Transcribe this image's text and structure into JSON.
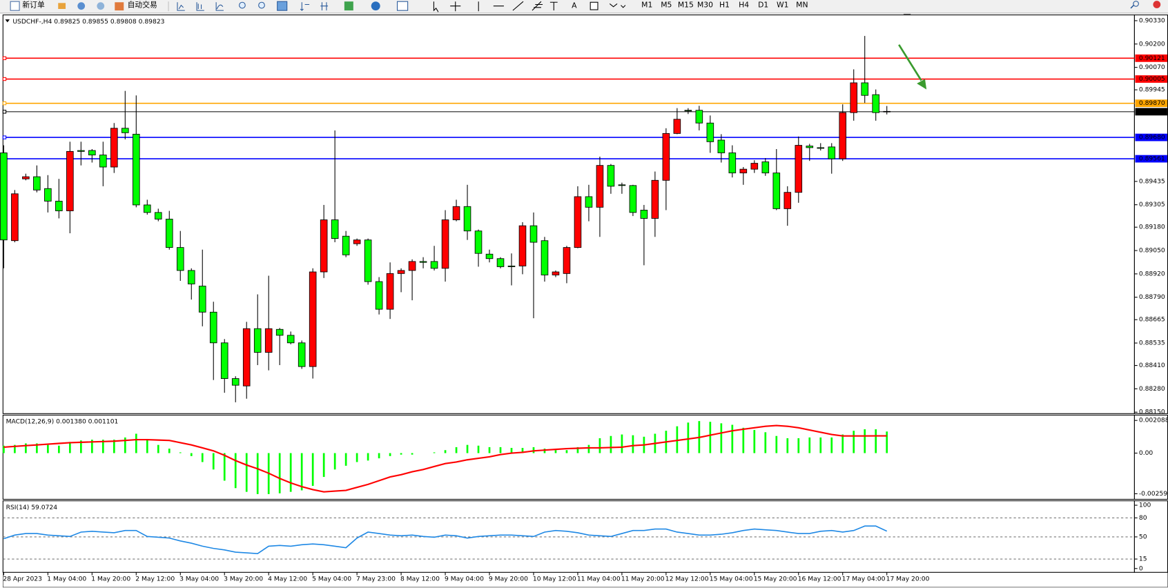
{
  "toolbar": {
    "new_order": "新订单",
    "auto_trading": "自动交易",
    "timeframes": [
      "M1",
      "M5",
      "M15",
      "M30",
      "H1",
      "H4",
      "D1",
      "W1",
      "MN"
    ]
  },
  "chart_data": [
    {
      "type": "candlestick",
      "title": "USDCHF-,H4  0.89825 0.89855 0.89808 0.89823",
      "up_color": "#ff0000",
      "down_color": "#00ff00",
      "categories": [
        "28 Apr 2023",
        null,
        null,
        null,
        "1 May 04:00",
        null,
        null,
        null,
        "1 May 20:00",
        null,
        null,
        null,
        "2 May 12:00",
        null,
        null,
        null,
        "3 May 04:00",
        null,
        null,
        null,
        "3 May 20:00",
        null,
        null,
        null,
        "4 May 12:00",
        null,
        null,
        null,
        "5 May 04:00",
        null,
        null,
        null,
        "7 May 23:00",
        null,
        null,
        null,
        "8 May 12:00",
        null,
        null,
        null,
        "9 May 04:00",
        null,
        null,
        null,
        "9 May 20:00",
        null,
        null,
        null,
        "10 May 12:00",
        null,
        null,
        null,
        "11 May 04:00",
        null,
        null,
        null,
        "11 May 20:00",
        null,
        null,
        null,
        "12 May 12:00",
        null,
        null,
        null,
        "15 May 04:00",
        null,
        null,
        null,
        "15 May 20:00",
        null,
        null,
        null,
        "16 May 12:00",
        null,
        null,
        null,
        "17 May 04:00",
        null,
        null,
        null,
        "17 May 20:00"
      ],
      "ohlc": [
        [
          0.89594,
          0.89636,
          0.88951,
          0.89109
        ],
        [
          0.89105,
          0.89387,
          0.89096,
          0.89366
        ],
        [
          0.89449,
          0.89478,
          0.89441,
          0.89461
        ],
        [
          0.89461,
          0.89524,
          0.89374,
          0.89387
        ],
        [
          0.89395,
          0.8947,
          0.89262,
          0.89325
        ],
        [
          0.89325,
          0.89449,
          0.89229,
          0.89271
        ],
        [
          0.89271,
          0.89656,
          0.89146,
          0.89602
        ],
        [
          0.89607,
          0.89656,
          0.89524,
          0.89602
        ],
        [
          0.89607,
          0.89615,
          0.8954,
          0.89582
        ],
        [
          0.89582,
          0.89656,
          0.89408,
          0.89515
        ],
        [
          0.89515,
          0.8976,
          0.89482,
          0.89731
        ],
        [
          0.89731,
          0.89939,
          0.89669,
          0.89706
        ],
        [
          0.89698,
          0.89914,
          0.89291,
          0.89304
        ],
        [
          0.89304,
          0.89333,
          0.8925,
          0.89262
        ],
        [
          0.89262,
          0.89283,
          0.89213,
          0.89225
        ],
        [
          0.89225,
          0.89271,
          0.89055,
          0.89067
        ],
        [
          0.89067,
          0.89159,
          0.88881,
          0.88939
        ],
        [
          0.88939,
          0.88951,
          0.88777,
          0.88864
        ],
        [
          0.88852,
          0.89055,
          0.88628,
          0.88707
        ],
        [
          0.88707,
          0.88765,
          0.88329,
          0.88536
        ],
        [
          0.88536,
          0.88557,
          0.88258,
          0.88337
        ],
        [
          0.88337,
          0.8835,
          0.88205,
          0.883
        ],
        [
          0.88296,
          0.88653,
          0.88225,
          0.88615
        ],
        [
          0.88615,
          0.88806,
          0.88412,
          0.88483
        ],
        [
          0.88483,
          0.8891,
          0.88383,
          0.88615
        ],
        [
          0.88611,
          0.88619,
          0.88412,
          0.88578
        ],
        [
          0.88578,
          0.88599,
          0.88528,
          0.88536
        ],
        [
          0.88536,
          0.88549,
          0.88391,
          0.88404
        ],
        [
          0.88404,
          0.88951,
          0.88337,
          0.88931
        ],
        [
          0.88931,
          0.89304,
          0.88897,
          0.89221
        ],
        [
          0.89221,
          0.89719,
          0.89096,
          0.89117
        ],
        [
          0.8913,
          0.89159,
          0.89013,
          0.89026
        ],
        [
          0.89088,
          0.89117,
          0.89076,
          0.89109
        ],
        [
          0.89109,
          0.89117,
          0.8886,
          0.88877
        ],
        [
          0.88877,
          0.88902,
          0.88694,
          0.88723
        ],
        [
          0.88723,
          0.88984,
          0.88669,
          0.88922
        ],
        [
          0.88922,
          0.88951,
          0.88818,
          0.88939
        ],
        [
          0.88939,
          0.89001,
          0.88773,
          0.88989
        ],
        [
          0.88989,
          0.89013,
          0.88951,
          0.88984
        ],
        [
          0.88989,
          0.89076,
          0.88939,
          0.88951
        ],
        [
          0.88951,
          0.89275,
          0.88877,
          0.89221
        ],
        [
          0.89221,
          0.89333,
          0.89213,
          0.89295
        ],
        [
          0.89295,
          0.89416,
          0.89109,
          0.89159
        ],
        [
          0.89159,
          0.89167,
          0.8896,
          0.89034
        ],
        [
          0.8903,
          0.89055,
          0.88984,
          0.89005
        ],
        [
          0.89005,
          0.89013,
          0.88951,
          0.8896
        ],
        [
          0.88964,
          0.89034,
          0.88856,
          0.8896
        ],
        [
          0.88964,
          0.89208,
          0.88918,
          0.89188
        ],
        [
          0.89188,
          0.89262,
          0.88673,
          0.89096
        ],
        [
          0.89105,
          0.89126,
          0.88877,
          0.88914
        ],
        [
          0.88914,
          0.88939,
          0.88902,
          0.88931
        ],
        [
          0.88922,
          0.89076,
          0.88868,
          0.89067
        ],
        [
          0.89067,
          0.89408,
          0.89063,
          0.8935
        ],
        [
          0.8935,
          0.89416,
          0.89213,
          0.89291
        ],
        [
          0.89291,
          0.89573,
          0.89126,
          0.89524
        ],
        [
          0.89524,
          0.89532,
          0.89366,
          0.89408
        ],
        [
          0.89416,
          0.89428,
          0.89366,
          0.89412
        ],
        [
          0.89412,
          0.89416,
          0.89242,
          0.89262
        ],
        [
          0.89275,
          0.89304,
          0.88968,
          0.89229
        ],
        [
          0.89229,
          0.8949,
          0.89126,
          0.89441
        ],
        [
          0.89441,
          0.89731,
          0.89275,
          0.89702
        ],
        [
          0.89702,
          0.89843,
          0.89698,
          0.89781
        ],
        [
          0.89831,
          0.89843,
          0.8981,
          0.89827
        ],
        [
          0.89831,
          0.89856,
          0.89719,
          0.8976
        ],
        [
          0.8976,
          0.89802,
          0.89594,
          0.89656
        ],
        [
          0.89665,
          0.89698,
          0.8954,
          0.89594
        ],
        [
          0.89594,
          0.89636,
          0.89457,
          0.89482
        ],
        [
          0.89482,
          0.89515,
          0.89416,
          0.89503
        ],
        [
          0.89503,
          0.89553,
          0.89482,
          0.89536
        ],
        [
          0.89544,
          0.89565,
          0.89466,
          0.89482
        ],
        [
          0.89482,
          0.89615,
          0.89275,
          0.89283
        ],
        [
          0.89283,
          0.89408,
          0.89188,
          0.89374
        ],
        [
          0.89374,
          0.89685,
          0.89316,
          0.89636
        ],
        [
          0.89632,
          0.89644,
          0.89549,
          0.89623
        ],
        [
          0.89623,
          0.89648,
          0.89607,
          0.89619
        ],
        [
          0.89627,
          0.89648,
          0.89478,
          0.89561
        ],
        [
          0.89561,
          0.89864,
          0.89549,
          0.89818
        ],
        [
          0.89818,
          0.90059,
          0.89773,
          0.89984
        ],
        [
          0.89984,
          0.90245,
          0.89872,
          0.89914
        ],
        [
          0.89918,
          0.89947,
          0.89773,
          0.89818
        ],
        [
          0.89825,
          0.89855,
          0.89808,
          0.89823
        ]
      ],
      "levels": [
        {
          "value": 0.90121,
          "color": "#ff0000"
        },
        {
          "value": 0.90005,
          "color": "#ff0000"
        },
        {
          "value": 0.8987,
          "label": "0.89870",
          "color": "#ffa500"
        },
        {
          "value": 0.89823,
          "color": "#000000"
        },
        {
          "value": 0.8968,
          "label": "0.89680",
          "color": "#0000ff"
        },
        {
          "value": 0.89561,
          "color": "#0000ff"
        }
      ],
      "ylim": [
        0.88142,
        0.90362
      ],
      "yticks": [
        {
          "value": 0.9033,
          "label": "0.90330"
        },
        {
          "value": 0.902,
          "label": "0.90200"
        },
        {
          "value": 0.9007,
          "label": "0.90070"
        },
        0.89945,
        0.89435,
        0.89305,
        {
          "value": 0.8918,
          "label": "0.89180"
        },
        {
          "value": 0.8905,
          "label": "0.89050"
        },
        {
          "value": 0.8892,
          "label": "0.88920"
        },
        {
          "value": 0.8879,
          "label": "0.88790"
        },
        0.88665,
        0.88535,
        {
          "value": 0.8841,
          "label": "0.88410"
        },
        {
          "value": 0.8828,
          "label": "0.88280"
        },
        {
          "value": 0.8815,
          "label": "0.88150"
        }
      ]
    },
    {
      "type": "combo",
      "title": "MACD(12,26,9) 0.001380 0.001101",
      "series": [
        {
          "type": "bar",
          "color": "#00ff00",
          "values": [
            0.000476,
            0.000524,
            0.000619,
            0.000619,
            0.000524,
            0.000476,
            0.000714,
            0.000809,
            0.000857,
            0.000857,
            0.000857,
            0.001,
            0.001238,
            0.000857,
            0.000524,
            0.000286,
            4.8e-05,
            -0.00019,
            -0.000571,
            -0.001047,
            -0.001761,
            -0.002237,
            -0.002475,
            -0.002618,
            -0.002618,
            -0.00257,
            -0.002475,
            -0.00238,
            -0.002094,
            -0.001523,
            -0.001047,
            -0.000809,
            -0.000571,
            -0.000476,
            -0.000333,
            -0.00019,
            -9.5e-05,
            -9.5e-05,
            0,
            4.8e-05,
            0.00019,
            0.000381,
            0.000524,
            0.000476,
            0.000381,
            0.000381,
            0.000333,
            0.000333,
            0.000381,
            0.000286,
            0.00019,
            0.00019,
            0.000381,
            0.000524,
            0.000952,
            0.001095,
            0.00119,
            0.001142,
            0.001047,
            0.001238,
            0.001428,
            0.001714,
            0.001952,
            0.002047,
            0.001999,
            0.001904,
            0.001809,
            0.001618,
            0.001476,
            0.001333,
            0.001095,
            0.000952,
            0.000952,
            0.001,
            0.001,
            0.001,
            0.00119,
            0.001428,
            0.001523,
            0.001523,
            0.00138
          ]
        },
        {
          "type": "line",
          "color": "#ff0000",
          "values": [
            0.000381,
            0.000428,
            0.000476,
            0.000524,
            0.000571,
            0.000619,
            0.000666,
            0.00069,
            0.000714,
            0.000738,
            0.000762,
            0.000809,
            0.000857,
            0.000857,
            0.000833,
            0.000809,
            0.000666,
            0.000524,
            0.000333,
            0.000143,
            -0.000143,
            -0.000476,
            -0.000762,
            -0.001,
            -0.001285,
            -0.001618,
            -0.001904,
            -0.002142,
            -0.002332,
            -0.002475,
            -0.002428,
            -0.00238,
            -0.00219,
            -0.001999,
            -0.001761,
            -0.001523,
            -0.00138,
            -0.00119,
            -0.001047,
            -0.000857,
            -0.000666,
            -0.000571,
            -0.000428,
            -0.000333,
            -0.000238,
            -9.5e-05,
            0,
            4.8e-05,
            0.000143,
            0.00019,
            0.000238,
            0.000286,
            0.000309,
            0.000333,
            0.000333,
            0.000357,
            0.000381,
            0.000476,
            0.000524,
            0.000619,
            0.000714,
            0.000809,
            0.000904,
            0.001,
            0.001142,
            0.001285,
            0.001428,
            0.001523,
            0.001618,
            0.001714,
            0.001761,
            0.001714,
            0.001618,
            0.001476,
            0.001333,
            0.00119,
            0.001095,
            0.001095,
            0.001095,
            0.0011,
            0.001101
          ]
        }
      ],
      "ylim": [
        -0.002952,
        0.002429
      ],
      "yticks": [
        0.002088,
        {
          "value": 0,
          "label": "0.00"
        },
        -0.002597
      ]
    },
    {
      "type": "line",
      "title": "RSI(14) 59.0724",
      "grid": true,
      "series": [
        {
          "color": "#1e88e5",
          "values": [
            47.1,
            52.9,
            55.3,
            55.3,
            52.9,
            51.8,
            50.6,
            57.6,
            58.8,
            57.6,
            56.5,
            60,
            60,
            50.6,
            49.4,
            48.2,
            43.5,
            40,
            35.3,
            31.8,
            29.4,
            25.9,
            24.7,
            23.5,
            35.3,
            36.5,
            35.3,
            37.6,
            38.8,
            37.6,
            35.3,
            32.9,
            48.2,
            57.6,
            55.3,
            52.9,
            51.8,
            52.9,
            50.6,
            49.4,
            52.9,
            51.8,
            48.2,
            50.6,
            51.8,
            52.9,
            52.9,
            51.8,
            50.6,
            57.6,
            60,
            58.8,
            56.5,
            52.9,
            51.8,
            50.6,
            55.3,
            60,
            60,
            62.4,
            62.4,
            57.6,
            55.3,
            52.9,
            52.9,
            54.1,
            56.5,
            60,
            62.4,
            61.2,
            60,
            57.6,
            55.3,
            55.3,
            58.8,
            60,
            57.6,
            60,
            67.1,
            67.1,
            59.0724
          ]
        }
      ],
      "ylim": [
        -6,
        107
      ],
      "yticks": [
        100,
        80,
        50,
        15,
        0
      ]
    }
  ]
}
